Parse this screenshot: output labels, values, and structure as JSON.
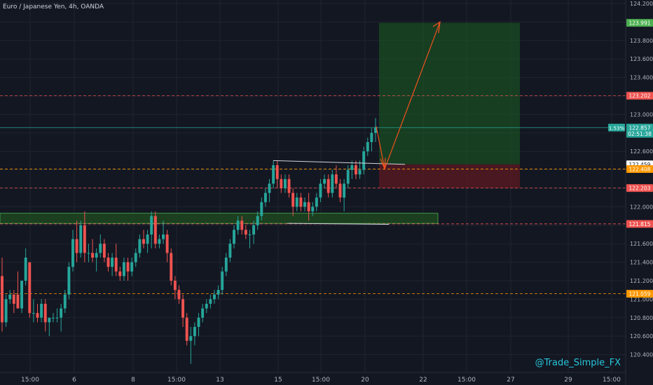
{
  "header": {
    "title": "Euro / Japanese Yen, 4h, OANDA"
  },
  "watermark": "@Trade_Simple_FX",
  "colors": {
    "bg": "#131722",
    "grid": "#1f2430",
    "up": "#26a69a",
    "down": "#ef5350",
    "axis_text": "#b2b5be",
    "target_zone": "#1b5e20",
    "stop_zone": "#5d1a22",
    "support_zone": "#1e4620",
    "level_red": "#ef5350",
    "level_orange": "#ff9800",
    "projection": "#f4511e"
  },
  "chart_data": {
    "type": "candlestick",
    "title": "Euro / Japanese Yen, 4h, OANDA",
    "ylim": [
      120.2,
      124.2
    ],
    "x_ticks": [
      "15:00",
      "6",
      "15:00",
      "8",
      "15:00",
      "13",
      "15",
      "15:00",
      "20",
      "22",
      "15:00",
      "27",
      "29",
      "15:00"
    ],
    "y_ticks": [
      "124.200",
      "124.000",
      "123.800",
      "123.600",
      "123.400",
      "123.200",
      "123.000",
      "122.800",
      "122.600",
      "122.400",
      "122.200",
      "122.000",
      "121.800",
      "121.600",
      "121.400",
      "121.200",
      "121.000",
      "120.800",
      "120.600",
      "120.400"
    ],
    "price_labels": [
      {
        "text": "123.991",
        "value": 123.991,
        "color": "#4caf50"
      },
      {
        "text": "123.202",
        "value": 123.202,
        "color": "#ef5350"
      },
      {
        "text": "122.857",
        "value": 122.857,
        "color": "#26a69a"
      },
      {
        "text": "02:51:38",
        "value": 122.79,
        "color": "#26a69a"
      },
      {
        "text": "122.459",
        "value": 122.459,
        "color": "#ffffff"
      },
      {
        "text": "122.408",
        "value": 122.408,
        "color": "#ff9800"
      },
      {
        "text": "122.203",
        "value": 122.203,
        "color": "#ef5350"
      },
      {
        "text": "121.815",
        "value": 121.815,
        "color": "#ef5350"
      },
      {
        "text": "121.059",
        "value": 121.059,
        "color": "#ff9800"
      }
    ],
    "percent_label": "1.53%",
    "levels": [
      {
        "value": 123.202,
        "color": "#ef5350"
      },
      {
        "value": 122.408,
        "color": "#ff9800"
      },
      {
        "value": 122.203,
        "color": "#ef5350"
      },
      {
        "value": 121.815,
        "color": "#ef5350"
      },
      {
        "value": 121.059,
        "color": "#ff9800"
      }
    ],
    "current_price": 122.857,
    "support_zone": {
      "from": 121.82,
      "to": 121.93
    },
    "position": {
      "entry": 122.459,
      "target": 123.991,
      "stop": 122.203
    },
    "candles": [
      [
        121.25,
        121.45,
        120.65,
        120.75
      ],
      [
        120.75,
        121.05,
        120.7,
        121.0
      ],
      [
        121.0,
        121.1,
        120.95,
        121.05
      ],
      [
        121.05,
        121.1,
        120.85,
        120.95
      ],
      [
        121.05,
        121.3,
        120.9,
        120.9
      ],
      [
        120.9,
        121.2,
        120.85,
        121.2
      ],
      [
        121.2,
        121.55,
        121.15,
        121.45
      ],
      [
        121.4,
        121.4,
        120.8,
        120.85
      ],
      [
        120.85,
        121.0,
        120.75,
        120.85
      ],
      [
        120.85,
        120.95,
        120.75,
        120.8
      ],
      [
        120.8,
        121.0,
        120.75,
        120.95
      ],
      [
        120.95,
        121.0,
        120.65,
        120.75
      ],
      [
        120.75,
        120.8,
        120.6,
        120.8
      ],
      [
        120.8,
        120.85,
        120.75,
        120.8
      ],
      [
        120.8,
        120.9,
        120.75,
        120.8
      ],
      [
        120.8,
        120.95,
        120.65,
        120.9
      ],
      [
        120.9,
        121.1,
        120.85,
        121.05
      ],
      [
        121.05,
        121.4,
        121.0,
        121.35
      ],
      [
        121.35,
        121.75,
        121.3,
        121.65
      ],
      [
        121.65,
        121.85,
        121.4,
        121.5
      ],
      [
        121.5,
        121.85,
        121.45,
        121.8
      ],
      [
        121.8,
        121.95,
        121.4,
        121.5
      ],
      [
        121.5,
        121.6,
        121.4,
        121.5
      ],
      [
        121.5,
        121.65,
        121.4,
        121.45
      ],
      [
        121.45,
        121.55,
        121.3,
        121.5
      ],
      [
        121.5,
        121.7,
        121.45,
        121.6
      ],
      [
        121.6,
        121.65,
        121.4,
        121.45
      ],
      [
        121.45,
        121.5,
        121.3,
        121.35
      ],
      [
        121.35,
        121.5,
        121.25,
        121.45
      ],
      [
        121.45,
        121.6,
        121.25,
        121.3
      ],
      [
        121.3,
        121.35,
        121.2,
        121.25
      ],
      [
        121.25,
        121.45,
        121.2,
        121.4
      ],
      [
        121.4,
        121.45,
        121.2,
        121.3
      ],
      [
        121.3,
        121.45,
        121.25,
        121.4
      ],
      [
        121.4,
        121.55,
        121.35,
        121.5
      ],
      [
        121.5,
        121.7,
        121.45,
        121.65
      ],
      [
        121.65,
        121.75,
        121.55,
        121.6
      ],
      [
        121.6,
        121.75,
        121.5,
        121.7
      ],
      [
        121.7,
        121.95,
        121.55,
        121.9
      ],
      [
        121.9,
        121.95,
        121.55,
        121.6
      ],
      [
        121.6,
        121.7,
        121.55,
        121.65
      ],
      [
        121.65,
        121.85,
        121.6,
        121.7
      ],
      [
        121.7,
        121.75,
        121.4,
        121.5
      ],
      [
        121.5,
        121.55,
        121.15,
        121.2
      ],
      [
        121.2,
        121.25,
        121.0,
        121.1
      ],
      [
        121.1,
        121.15,
        120.95,
        121.0
      ],
      [
        121.0,
        121.05,
        120.7,
        120.8
      ],
      [
        120.8,
        120.85,
        120.5,
        120.55
      ],
      [
        120.55,
        120.7,
        120.3,
        120.6
      ],
      [
        120.6,
        120.75,
        120.5,
        120.7
      ],
      [
        120.7,
        120.85,
        120.6,
        120.8
      ],
      [
        120.8,
        120.95,
        120.75,
        120.9
      ],
      [
        120.9,
        121.0,
        120.85,
        120.95
      ],
      [
        120.95,
        121.05,
        120.9,
        121.0
      ],
      [
        121.0,
        121.1,
        120.95,
        121.05
      ],
      [
        121.05,
        121.15,
        121.0,
        121.1
      ],
      [
        121.1,
        121.35,
        121.05,
        121.3
      ],
      [
        121.3,
        121.5,
        121.25,
        121.45
      ],
      [
        121.45,
        121.65,
        121.4,
        121.6
      ],
      [
        121.6,
        121.8,
        121.55,
        121.75
      ],
      [
        121.75,
        121.9,
        121.7,
        121.85
      ],
      [
        121.85,
        121.9,
        121.7,
        121.75
      ],
      [
        121.75,
        121.8,
        121.65,
        121.7
      ],
      [
        121.7,
        121.75,
        121.55,
        121.7
      ],
      [
        121.7,
        121.85,
        121.6,
        121.8
      ],
      [
        121.8,
        121.95,
        121.75,
        121.9
      ],
      [
        121.9,
        122.1,
        121.85,
        122.05
      ],
      [
        122.05,
        122.2,
        122.0,
        122.15
      ],
      [
        122.15,
        122.3,
        122.05,
        122.25
      ],
      [
        122.25,
        122.5,
        122.2,
        122.45
      ],
      [
        122.45,
        122.5,
        122.2,
        122.3
      ],
      [
        122.3,
        122.35,
        122.15,
        122.2
      ],
      [
        122.2,
        122.35,
        122.15,
        122.3
      ],
      [
        122.3,
        122.35,
        122.1,
        122.15
      ],
      [
        122.15,
        122.2,
        121.9,
        122.0
      ],
      [
        122.0,
        122.15,
        121.95,
        122.1
      ],
      [
        122.1,
        122.15,
        121.95,
        122.0
      ],
      [
        122.0,
        122.1,
        121.95,
        122.05
      ],
      [
        122.05,
        122.15,
        121.85,
        121.95
      ],
      [
        121.95,
        122.05,
        121.9,
        122.0
      ],
      [
        122.0,
        122.15,
        121.95,
        122.1
      ],
      [
        122.1,
        122.3,
        122.05,
        122.25
      ],
      [
        122.25,
        122.35,
        122.2,
        122.3
      ],
      [
        122.3,
        122.35,
        122.1,
        122.15
      ],
      [
        122.15,
        122.4,
        122.1,
        122.35
      ],
      [
        122.35,
        122.45,
        122.2,
        122.25
      ],
      [
        122.25,
        122.3,
        122.05,
        122.1
      ],
      [
        122.1,
        122.3,
        121.95,
        122.25
      ],
      [
        122.25,
        122.45,
        122.2,
        122.4
      ],
      [
        122.4,
        122.5,
        122.3,
        122.45
      ],
      [
        122.45,
        122.5,
        122.3,
        122.35
      ],
      [
        122.35,
        122.5,
        122.3,
        122.4
      ],
      [
        122.4,
        122.65,
        122.35,
        122.6
      ],
      [
        122.6,
        122.75,
        122.55,
        122.7
      ],
      [
        122.7,
        122.85,
        122.6,
        122.8
      ],
      [
        122.8,
        122.96,
        122.7,
        122.86
      ]
    ]
  }
}
